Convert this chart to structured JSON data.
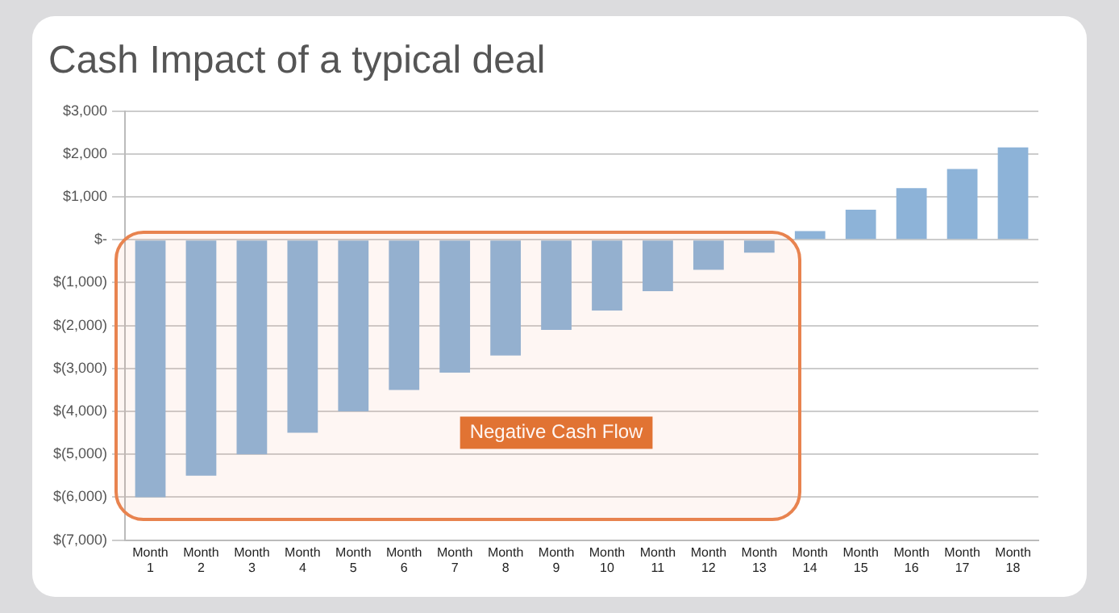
{
  "chart_data": {
    "type": "bar",
    "title": "Cash Impact of a typical deal",
    "categories": [
      "Month 1",
      "Month 2",
      "Month 3",
      "Month 4",
      "Month 5",
      "Month 6",
      "Month 7",
      "Month 8",
      "Month 9",
      "Month 10",
      "Month 11",
      "Month 12",
      "Month 13",
      "Month 14",
      "Month 15",
      "Month 16",
      "Month 17",
      "Month 18"
    ],
    "values": [
      -6000,
      -5500,
      -5000,
      -4500,
      -4000,
      -3500,
      -3100,
      -2700,
      -2100,
      -1650,
      -1200,
      -700,
      -300,
      200,
      700,
      1200,
      1650,
      2150
    ],
    "color": "#8db3d8",
    "ylim": [
      -7000,
      3000
    ],
    "yticks": [
      {
        "value": -7000,
        "label": "$(7,000)"
      },
      {
        "value": -6000,
        "label": "$(6,000)"
      },
      {
        "value": -5000,
        "label": "$(5,000)"
      },
      {
        "value": -4000,
        "label": "$(4,000)"
      },
      {
        "value": -3000,
        "label": "$(3,000)"
      },
      {
        "value": -2000,
        "label": "$(2,000)"
      },
      {
        "value": -1000,
        "label": "$(1,000)"
      },
      {
        "value": 0,
        "label": "$-"
      },
      {
        "value": 1000,
        "label": "$1,000"
      },
      {
        "value": 2000,
        "label": "$2,000"
      },
      {
        "value": 3000,
        "label": "$3,000"
      }
    ],
    "grid": "y",
    "legend": false,
    "annotations": [
      "Negative Cash Flow"
    ]
  }
}
